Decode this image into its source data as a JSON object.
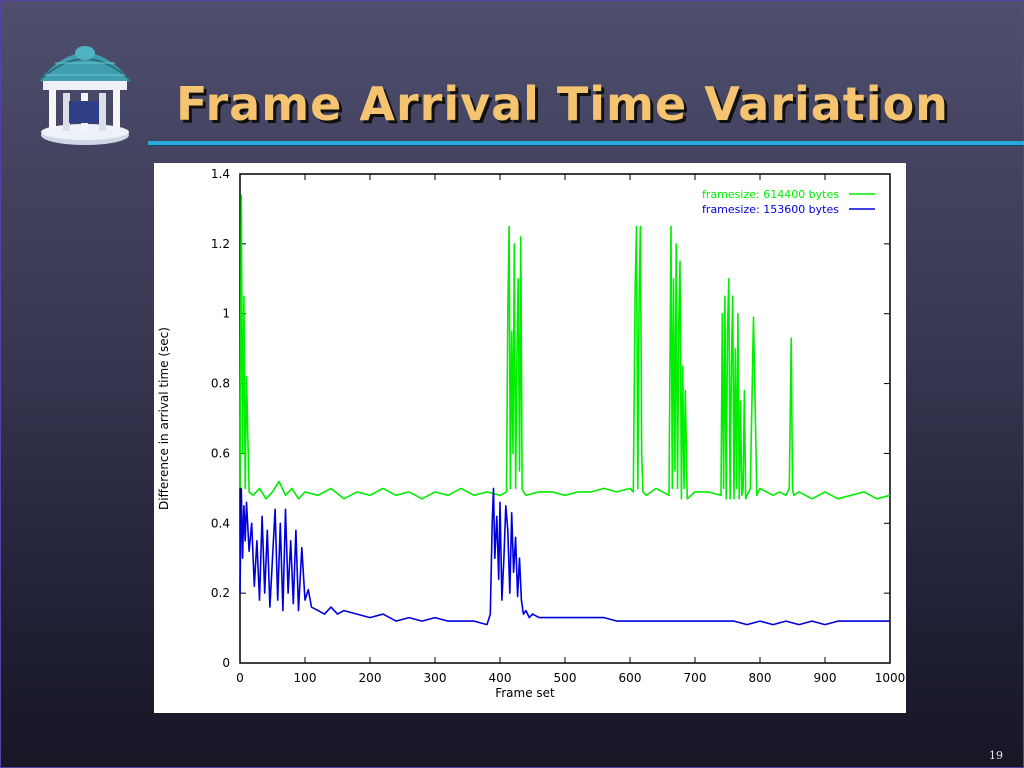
{
  "slide": {
    "title": "Frame Arrival Time Variation",
    "page_number": "19",
    "logo_icon": "old-well-icon",
    "title_color": "#f4c470",
    "rule_color": "#29a9d9"
  },
  "chart_data": {
    "type": "line",
    "title": "",
    "xlabel": "Frame set",
    "ylabel": "Difference in arrival time (sec)",
    "xlim": [
      0,
      1000
    ],
    "ylim": [
      0,
      1.4
    ],
    "x_ticks": [
      "0",
      "100",
      "200",
      "300",
      "400",
      "500",
      "600",
      "700",
      "800",
      "900",
      "1000"
    ],
    "y_ticks": [
      "0",
      "0.2",
      "0.4",
      "0.6",
      "0.8",
      "1",
      "1.2",
      "1.4"
    ],
    "grid": false,
    "legend_position": "top-right",
    "series": [
      {
        "name": "framesize: 614400 bytes",
        "color": "#00ee00",
        "x": [
          0,
          2,
          4,
          6,
          8,
          10,
          14,
          20,
          30,
          40,
          50,
          60,
          70,
          80,
          90,
          100,
          120,
          140,
          160,
          180,
          200,
          220,
          240,
          260,
          280,
          300,
          320,
          340,
          360,
          380,
          400,
          410,
          412,
          414,
          416,
          418,
          420,
          422,
          424,
          426,
          428,
          430,
          432,
          434,
          436,
          440,
          460,
          480,
          500,
          520,
          540,
          560,
          580,
          600,
          605,
          608,
          610,
          612,
          614,
          616,
          618,
          620,
          625,
          640,
          660,
          663,
          665,
          667,
          669,
          671,
          673,
          675,
          677,
          679,
          681,
          683,
          685,
          688,
          700,
          720,
          740,
          742,
          744,
          746,
          748,
          750,
          752,
          754,
          756,
          758,
          760,
          762,
          764,
          766,
          768,
          770,
          772,
          774,
          776,
          778,
          780,
          785,
          790,
          795,
          800,
          810,
          820,
          830,
          840,
          845,
          848,
          850,
          852,
          860,
          880,
          900,
          920,
          940,
          960,
          980,
          1000
        ],
        "y": [
          0.5,
          1.34,
          0.6,
          1.05,
          0.5,
          0.82,
          0.49,
          0.48,
          0.5,
          0.47,
          0.49,
          0.52,
          0.48,
          0.5,
          0.47,
          0.49,
          0.48,
          0.5,
          0.47,
          0.49,
          0.48,
          0.5,
          0.48,
          0.49,
          0.47,
          0.49,
          0.48,
          0.5,
          0.48,
          0.49,
          0.48,
          0.49,
          1.0,
          1.25,
          0.5,
          0.95,
          0.6,
          1.2,
          0.5,
          0.88,
          1.1,
          0.55,
          1.22,
          0.5,
          0.49,
          0.48,
          0.49,
          0.49,
          0.48,
          0.49,
          0.49,
          0.5,
          0.49,
          0.5,
          0.49,
          1.08,
          1.25,
          0.5,
          1.05,
          1.25,
          0.6,
          0.49,
          0.48,
          0.5,
          0.48,
          1.25,
          0.5,
          1.1,
          0.55,
          1.2,
          0.5,
          0.98,
          1.15,
          0.47,
          0.85,
          0.5,
          0.78,
          0.47,
          0.49,
          0.49,
          0.48,
          1.0,
          0.5,
          1.05,
          0.47,
          0.95,
          1.1,
          0.47,
          0.85,
          1.05,
          0.47,
          0.9,
          0.5,
          1.0,
          0.47,
          0.75,
          0.48,
          0.5,
          0.78,
          0.47,
          0.48,
          0.5,
          0.99,
          0.48,
          0.5,
          0.49,
          0.48,
          0.49,
          0.48,
          0.5,
          0.93,
          0.5,
          0.48,
          0.49,
          0.47,
          0.49,
          0.47,
          0.48,
          0.49,
          0.47,
          0.48
        ]
      },
      {
        "name": "framesize: 153600 bytes",
        "color": "#0000dd",
        "x": [
          0,
          2,
          4,
          6,
          8,
          10,
          14,
          18,
          22,
          26,
          30,
          34,
          38,
          42,
          46,
          50,
          54,
          58,
          62,
          66,
          70,
          74,
          78,
          82,
          86,
          90,
          95,
          100,
          105,
          110,
          120,
          130,
          140,
          150,
          160,
          180,
          200,
          220,
          240,
          260,
          280,
          300,
          320,
          340,
          360,
          380,
          385,
          388,
          390,
          392,
          395,
          398,
          400,
          403,
          406,
          409,
          412,
          415,
          418,
          421,
          424,
          427,
          430,
          433,
          436,
          440,
          445,
          450,
          460,
          480,
          500,
          520,
          540,
          560,
          580,
          600,
          620,
          640,
          660,
          680,
          700,
          720,
          740,
          760,
          780,
          800,
          820,
          840,
          860,
          880,
          900,
          920,
          940,
          960,
          980,
          1000
        ],
        "y": [
          0.2,
          0.5,
          0.3,
          0.45,
          0.35,
          0.46,
          0.32,
          0.4,
          0.22,
          0.35,
          0.18,
          0.42,
          0.2,
          0.38,
          0.16,
          0.3,
          0.44,
          0.18,
          0.4,
          0.15,
          0.44,
          0.2,
          0.35,
          0.17,
          0.38,
          0.15,
          0.33,
          0.18,
          0.21,
          0.16,
          0.15,
          0.14,
          0.16,
          0.14,
          0.15,
          0.14,
          0.13,
          0.14,
          0.12,
          0.13,
          0.12,
          0.13,
          0.12,
          0.12,
          0.12,
          0.11,
          0.14,
          0.4,
          0.5,
          0.3,
          0.42,
          0.24,
          0.46,
          0.18,
          0.3,
          0.45,
          0.38,
          0.2,
          0.43,
          0.26,
          0.36,
          0.19,
          0.3,
          0.18,
          0.14,
          0.15,
          0.13,
          0.14,
          0.13,
          0.13,
          0.13,
          0.13,
          0.13,
          0.13,
          0.12,
          0.12,
          0.12,
          0.12,
          0.12,
          0.12,
          0.12,
          0.12,
          0.12,
          0.12,
          0.11,
          0.12,
          0.11,
          0.12,
          0.11,
          0.12,
          0.11,
          0.12,
          0.12,
          0.12,
          0.12,
          0.12
        ]
      }
    ]
  }
}
